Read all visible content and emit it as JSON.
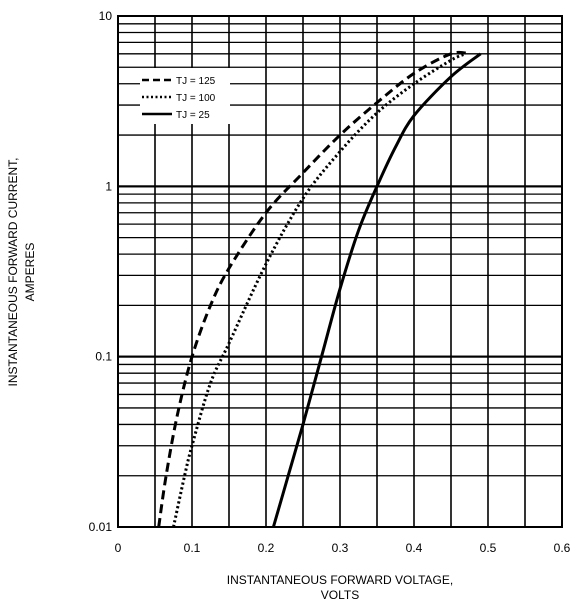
{
  "chart_data": {
    "type": "line",
    "xlabel": [
      "INSTANTANEOUS FORWARD VOLTAGE,",
      "VOLTS"
    ],
    "ylabel": [
      "INSTANTANEOUS FORWARD CURRENT,",
      "AMPERES"
    ],
    "xlim": [
      0,
      0.6
    ],
    "ylim": [
      0.01,
      10
    ],
    "yscale": "log",
    "grid": true,
    "legend_position": "top-left",
    "x_ticks": [
      {
        "value": 0,
        "label": "0"
      },
      {
        "value": 0.1,
        "label": "0.1"
      },
      {
        "value": 0.2,
        "label": "0.2"
      },
      {
        "value": 0.3,
        "label": "0.3"
      },
      {
        "value": 0.4,
        "label": "0.4"
      },
      {
        "value": 0.5,
        "label": "0.5"
      },
      {
        "value": 0.6,
        "label": "0.6"
      }
    ],
    "y_ticks": [
      {
        "value": 0.01,
        "label": "0.01"
      },
      {
        "value": 0.1,
        "label": "0.1"
      },
      {
        "value": 1,
        "label": "1"
      },
      {
        "value": 10,
        "label": "10"
      }
    ],
    "series": [
      {
        "name": "TJ = 125",
        "style": "dashed",
        "x": [
          0.055,
          0.065,
          0.08,
          0.1,
          0.125,
          0.15,
          0.2,
          0.25,
          0.3,
          0.35,
          0.4,
          0.45,
          0.475
        ],
        "y": [
          0.01,
          0.02,
          0.045,
          0.1,
          0.2,
          0.33,
          0.7,
          1.2,
          2.0,
          3.1,
          4.6,
          6.0,
          6.0
        ]
      },
      {
        "name": "TJ = 100",
        "style": "dotted",
        "x": [
          0.075,
          0.09,
          0.1,
          0.125,
          0.15,
          0.2,
          0.25,
          0.3,
          0.35,
          0.4,
          0.45,
          0.47
        ],
        "y": [
          0.01,
          0.02,
          0.03,
          0.07,
          0.12,
          0.35,
          0.85,
          1.6,
          2.7,
          4.0,
          5.5,
          6.0
        ]
      },
      {
        "name": "TJ = 25",
        "style": "solid",
        "x": [
          0.21,
          0.23,
          0.25,
          0.275,
          0.3,
          0.325,
          0.35,
          0.375,
          0.4,
          0.45,
          0.49
        ],
        "y": [
          0.01,
          0.02,
          0.04,
          0.1,
          0.25,
          0.55,
          1.0,
          1.7,
          2.6,
          4.4,
          6.0
        ]
      }
    ]
  }
}
